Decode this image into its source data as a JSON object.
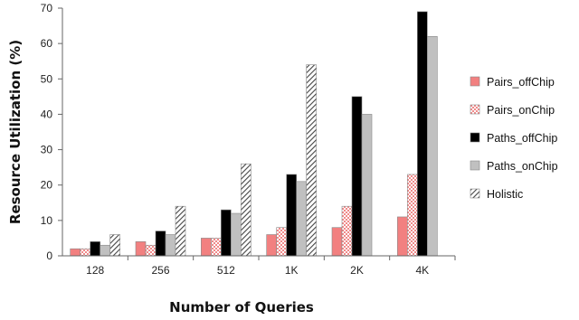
{
  "chart_data": {
    "type": "bar",
    "xlabel": "Number of Queries",
    "ylabel": "Resource Utilization (%)",
    "categories": [
      "128",
      "256",
      "512",
      "1K",
      "2K",
      "4K"
    ],
    "ylim": [
      0,
      70
    ],
    "yticks": [
      0,
      10,
      20,
      30,
      40,
      50,
      60,
      70
    ],
    "grid": false,
    "legend_position": "right",
    "series": [
      {
        "name": "Pairs_offChip",
        "color": "#f28080",
        "pattern": "solid",
        "values": [
          2,
          4,
          5,
          6,
          8,
          11
        ]
      },
      {
        "name": "Pairs_onChip",
        "color": "#f4a0a0",
        "pattern": "checker",
        "values": [
          2,
          3,
          5,
          8,
          14,
          23
        ]
      },
      {
        "name": "Paths_offChip",
        "color": "#000000",
        "pattern": "solid",
        "values": [
          4,
          7,
          13,
          23,
          45,
          69
        ]
      },
      {
        "name": "Paths_onChip",
        "color": "#c0c0c0",
        "pattern": "solid",
        "values": [
          3,
          6,
          12,
          21,
          40,
          62
        ]
      },
      {
        "name": "Holistic",
        "color": "#555555",
        "pattern": "hatch",
        "values": [
          6,
          14,
          26,
          54,
          null,
          null
        ]
      }
    ]
  }
}
